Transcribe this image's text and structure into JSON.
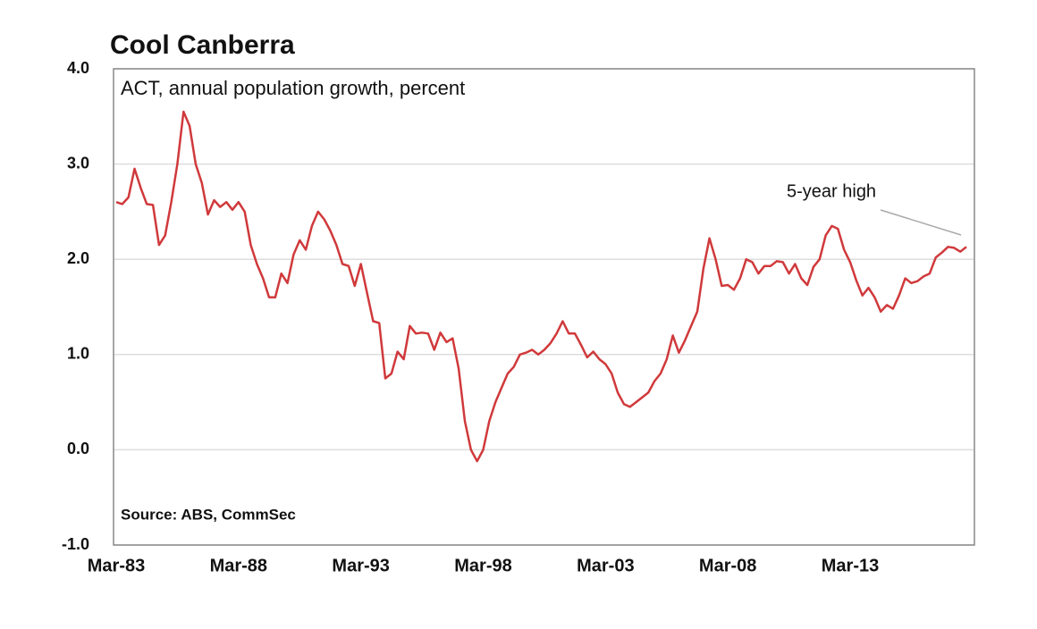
{
  "chart_data": {
    "type": "line",
    "title": "Cool Canberra",
    "subtitle": "ACT, annual population growth, percent",
    "source": "Source: ABS, CommSec",
    "annotation": "5-year high",
    "categories": [
      "Mar-83",
      null,
      null,
      null,
      null,
      null,
      null,
      null,
      null,
      null,
      null,
      null,
      null,
      null,
      null,
      null,
      null,
      null,
      null,
      null,
      "Mar-88",
      null,
      null,
      null,
      null,
      null,
      null,
      null,
      null,
      null,
      null,
      null,
      null,
      null,
      null,
      null,
      null,
      null,
      null,
      null,
      "Mar-93",
      null,
      null,
      null,
      null,
      null,
      null,
      null,
      null,
      null,
      null,
      null,
      null,
      null,
      null,
      null,
      null,
      null,
      null,
      null,
      "Mar-98",
      null,
      null,
      null,
      null,
      null,
      null,
      null,
      null,
      null,
      null,
      null,
      null,
      null,
      null,
      null,
      null,
      null,
      null,
      null,
      "Mar-03",
      null,
      null,
      null,
      null,
      null,
      null,
      null,
      null,
      null,
      null,
      null,
      null,
      null,
      null,
      null,
      null,
      null,
      null,
      null,
      "Mar-08",
      null,
      null,
      null,
      null,
      null,
      null,
      null,
      null,
      null,
      null,
      null,
      null,
      null,
      null,
      null,
      null,
      null,
      null,
      null,
      "Mar-13",
      null,
      null,
      null,
      null,
      null,
      null,
      null,
      null,
      null,
      null,
      null,
      null,
      null,
      null,
      null,
      null,
      null,
      null,
      null
    ],
    "values": [
      2.6,
      2.58,
      2.65,
      2.95,
      2.75,
      2.58,
      2.57,
      2.15,
      2.25,
      2.6,
      3.0,
      3.55,
      3.4,
      3.0,
      2.8,
      2.47,
      2.62,
      2.55,
      2.6,
      2.52,
      2.6,
      2.5,
      2.15,
      1.95,
      1.8,
      1.6,
      1.6,
      1.85,
      1.75,
      2.05,
      2.2,
      2.1,
      2.35,
      2.5,
      2.42,
      2.3,
      2.15,
      1.95,
      1.93,
      1.72,
      1.95,
      1.65,
      1.35,
      1.33,
      0.75,
      0.8,
      1.03,
      0.95,
      1.3,
      1.22,
      1.23,
      1.22,
      1.05,
      1.23,
      1.13,
      1.17,
      0.85,
      0.3,
      0.0,
      -0.12,
      0.0,
      0.3,
      0.5,
      0.65,
      0.8,
      0.87,
      1.0,
      1.02,
      1.05,
      1.0,
      1.05,
      1.12,
      1.22,
      1.35,
      1.22,
      1.22,
      1.1,
      0.97,
      1.03,
      0.95,
      0.9,
      0.8,
      0.6,
      0.48,
      0.45,
      0.5,
      0.55,
      0.6,
      0.72,
      0.8,
      0.95,
      1.2,
      1.02,
      1.15,
      1.3,
      1.45,
      1.9,
      2.22,
      2.0,
      1.72,
      1.73,
      1.68,
      1.8,
      2.0,
      1.97,
      1.85,
      1.93,
      1.93,
      1.98,
      1.97,
      1.85,
      1.95,
      1.8,
      1.73,
      1.92,
      2.0,
      2.25,
      2.35,
      2.32,
      2.1,
      1.97,
      1.78,
      1.62,
      1.7,
      1.6,
      1.45,
      1.52,
      1.48,
      1.62,
      1.8,
      1.75,
      1.77,
      1.82,
      1.85,
      2.02,
      2.07,
      2.13,
      2.12,
      2.08,
      2.13
    ],
    "color": "#d0393b",
    "ylim": [
      -1,
      4
    ],
    "yticks": [
      {
        "value": -1,
        "label": "-1.0"
      },
      {
        "value": 0,
        "label": "0.0"
      },
      {
        "value": 1,
        "label": "1.0"
      },
      {
        "value": 2,
        "label": "2.0"
      },
      {
        "value": 3,
        "label": "3.0"
      },
      {
        "value": 4,
        "label": "4.0"
      }
    ],
    "grid": true
  }
}
